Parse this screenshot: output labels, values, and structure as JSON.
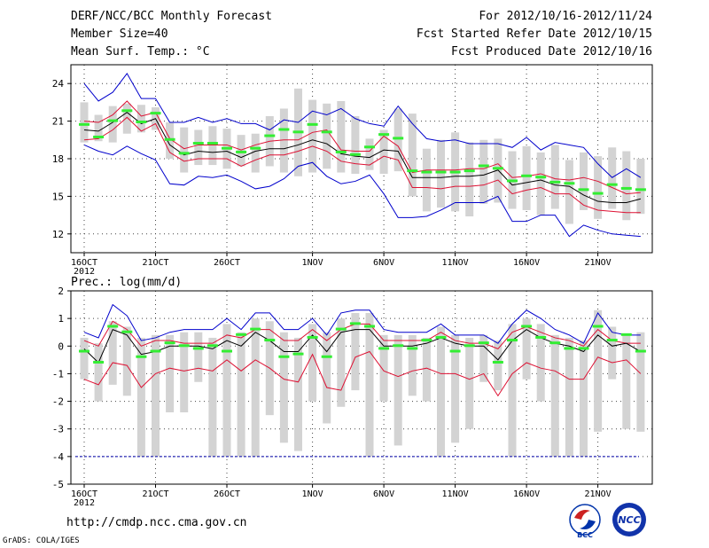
{
  "header": {
    "title": "DERF/NCC/BCC Monthly Forecast",
    "member_size": "Member Size=40",
    "variable1": "Mean Surf. Temp.: °C",
    "period": "For 2012/10/16-2012/11/24",
    "fcst_started": "Fcst Started Refer Date 2012/10/15",
    "fcst_produced": "Fcst Produced Date 2012/10/16"
  },
  "footer": {
    "url": "http://cmdp.ncc.cma.gov.cn",
    "grads": "GrADS: COLA/IGES",
    "logo_left_text": "BCC",
    "logo_right_text": "NCC"
  },
  "colors": {
    "box": "#d3d3d3",
    "median": "#33ee33",
    "mean": "#000000",
    "spread": "#dd1133",
    "extreme": "#0000cc",
    "dashed": "#0000aa"
  },
  "chart_data": [
    {
      "type": "ensemble-plume",
      "title": "Mean Surf. Temp.: °C",
      "xlabel": "",
      "ylabel": "°C",
      "ylim": [
        10.5,
        25.5
      ],
      "yticks": [
        12,
        15,
        18,
        21,
        24
      ],
      "xticks": [
        {
          "day": 1,
          "label": "16OCT",
          "sub": "2012"
        },
        {
          "day": 6,
          "label": "21OCT"
        },
        {
          "day": 11,
          "label": "26OCT"
        },
        {
          "day": 17,
          "label": "1NOV"
        },
        {
          "day": 22,
          "label": "6NOV"
        },
        {
          "day": 27,
          "label": "11NOV"
        },
        {
          "day": 32,
          "label": "16NOV"
        },
        {
          "day": 37,
          "label": "21NOV"
        }
      ],
      "days": 40,
      "series": [
        {
          "name": "max",
          "values": [
            24.0,
            22.6,
            23.3,
            24.8,
            22.8,
            22.8,
            20.9,
            20.9,
            21.3,
            20.9,
            21.2,
            20.8,
            20.8,
            20.3,
            21.1,
            20.9,
            21.8,
            21.5,
            22.0,
            21.2,
            20.8,
            20.6,
            22.2,
            20.8,
            19.6,
            19.4,
            19.5,
            19.2,
            19.2,
            19.2,
            18.9,
            19.7,
            18.7,
            19.3,
            19.1,
            18.9,
            17.6,
            16.5,
            17.2,
            16.5
          ]
        },
        {
          "name": "upper",
          "values": [
            21.0,
            20.9,
            21.5,
            22.6,
            21.4,
            21.7,
            19.6,
            18.8,
            19.1,
            19.1,
            19.1,
            18.7,
            19.1,
            19.4,
            19.5,
            19.5,
            20.1,
            20.3,
            18.7,
            18.6,
            18.6,
            19.8,
            19.0,
            16.9,
            17.1,
            17.1,
            17.1,
            17.2,
            17.2,
            17.6,
            16.5,
            16.6,
            16.8,
            16.4,
            16.3,
            16.5,
            16.2,
            15.7,
            15.2,
            15.3
          ]
        },
        {
          "name": "mean",
          "values": [
            20.3,
            20.2,
            20.9,
            21.7,
            20.8,
            21.2,
            19.1,
            18.3,
            18.6,
            18.5,
            18.6,
            18.1,
            18.6,
            18.8,
            18.8,
            19.1,
            19.5,
            19.2,
            18.4,
            18.2,
            18.1,
            18.7,
            18.6,
            16.5,
            16.5,
            16.5,
            16.6,
            16.6,
            16.7,
            17.1,
            15.9,
            16.1,
            16.3,
            15.9,
            15.8,
            15.1,
            14.6,
            14.5,
            14.5,
            14.8
          ]
        },
        {
          "name": "lower",
          "values": [
            19.5,
            19.6,
            20.3,
            21.3,
            20.2,
            20.8,
            18.5,
            17.8,
            18.0,
            18.0,
            18.0,
            17.4,
            17.9,
            18.3,
            18.3,
            18.6,
            19.0,
            18.6,
            17.8,
            17.6,
            17.5,
            18.2,
            17.9,
            15.7,
            15.7,
            15.6,
            15.8,
            15.8,
            15.9,
            16.3,
            15.2,
            15.5,
            15.7,
            15.2,
            15.2,
            14.3,
            13.9,
            13.8,
            13.7,
            13.7
          ]
        },
        {
          "name": "min",
          "values": [
            19.1,
            18.6,
            18.3,
            19.0,
            18.4,
            17.9,
            16.0,
            15.9,
            16.6,
            16.5,
            16.7,
            16.2,
            15.6,
            15.8,
            16.4,
            17.4,
            17.7,
            16.6,
            16.0,
            16.2,
            16.7,
            15.2,
            13.3,
            13.3,
            13.4,
            13.9,
            14.5,
            14.5,
            14.5,
            15.0,
            13.0,
            13.0,
            13.5,
            13.5,
            11.8,
            12.7,
            12.3,
            12.0,
            11.9,
            11.8
          ]
        },
        {
          "name": "box_top",
          "values": [
            22.5,
            21.5,
            22.2,
            22.4,
            22.3,
            22.1,
            20.9,
            20.5,
            20.3,
            20.6,
            20.4,
            19.9,
            20.0,
            21.4,
            22.0,
            23.6,
            22.7,
            22.4,
            22.6,
            21.4,
            19.6,
            20.3,
            22.0,
            21.6,
            18.8,
            19.5,
            20.1,
            19.3,
            19.5,
            19.6,
            18.6,
            19.0,
            18.5,
            19.1,
            17.9,
            18.5,
            18.2,
            18.9,
            18.6,
            18.0
          ]
        },
        {
          "name": "box_bottom",
          "values": [
            19.3,
            19.4,
            19.3,
            20.0,
            20.1,
            20.3,
            18.0,
            16.9,
            17.5,
            17.5,
            17.2,
            17.4,
            16.9,
            17.4,
            16.9,
            16.6,
            16.9,
            17.2,
            16.9,
            16.8,
            17.1,
            16.8,
            17.0,
            15.0,
            13.8,
            14.1,
            13.8,
            13.4,
            14.4,
            14.5,
            14.0,
            13.9,
            13.5,
            14.0,
            12.8,
            13.9,
            13.2,
            14.0,
            13.1,
            13.6
          ]
        },
        {
          "name": "median",
          "values": [
            20.7,
            19.7,
            21.0,
            21.8,
            20.9,
            21.6,
            19.5,
            18.4,
            19.2,
            19.2,
            18.8,
            18.5,
            18.8,
            19.8,
            20.3,
            20.1,
            20.7,
            20.1,
            18.5,
            18.3,
            18.9,
            19.9,
            19.6,
            17.0,
            16.9,
            16.9,
            16.9,
            17.0,
            17.4,
            17.2,
            16.2,
            16.6,
            16.5,
            16.1,
            16.0,
            15.5,
            15.2,
            15.9,
            15.6,
            15.5
          ]
        }
      ]
    },
    {
      "type": "ensemble-plume",
      "title": "Prec.: log(mm/d)",
      "xlabel": "",
      "ylabel": "log(mm/d)",
      "ylim": [
        -5,
        2
      ],
      "yticks": [
        -5,
        -4,
        -3,
        -2,
        -1,
        0,
        1,
        2
      ],
      "dashed_line": -4,
      "xticks": [
        {
          "day": 1,
          "label": "16OCT",
          "sub": "2012"
        },
        {
          "day": 6,
          "label": "21OCT"
        },
        {
          "day": 11,
          "label": "26OCT"
        },
        {
          "day": 17,
          "label": "1NOV"
        },
        {
          "day": 22,
          "label": "6NOV"
        },
        {
          "day": 27,
          "label": "11NOV"
        },
        {
          "day": 32,
          "label": "16NOV"
        },
        {
          "day": 37,
          "label": "21NOV"
        }
      ],
      "days": 40,
      "series": [
        {
          "name": "max",
          "values": [
            0.5,
            0.3,
            1.5,
            1.1,
            0.2,
            0.3,
            0.5,
            0.6,
            0.6,
            0.6,
            1.0,
            0.6,
            1.2,
            1.2,
            0.6,
            0.6,
            1.0,
            0.4,
            1.2,
            1.3,
            1.3,
            0.6,
            0.5,
            0.5,
            0.5,
            0.8,
            0.4,
            0.4,
            0.4,
            0.1,
            0.8,
            1.3,
            1.0,
            0.6,
            0.4,
            0.1,
            1.2,
            0.5,
            0.4,
            0.4
          ]
        },
        {
          "name": "upper",
          "values": [
            0.2,
            0.0,
            0.9,
            0.6,
            0.0,
            0.2,
            0.2,
            0.1,
            0.1,
            0.1,
            0.4,
            0.3,
            0.6,
            0.6,
            0.2,
            0.2,
            0.6,
            0.2,
            0.6,
            0.8,
            0.8,
            0.2,
            0.2,
            0.2,
            0.2,
            0.5,
            0.2,
            0.1,
            0.1,
            -0.1,
            0.5,
            0.7,
            0.5,
            0.3,
            0.2,
            0.0,
            0.6,
            0.2,
            0.1,
            0.1
          ]
        },
        {
          "name": "mean",
          "values": [
            -0.1,
            -0.6,
            0.6,
            0.4,
            -0.3,
            -0.2,
            0.0,
            0.0,
            0.0,
            -0.1,
            0.2,
            0.0,
            0.5,
            0.2,
            -0.2,
            -0.2,
            0.4,
            -0.2,
            0.5,
            0.6,
            0.6,
            0.0,
            0.0,
            0.0,
            0.1,
            0.3,
            0.1,
            0.0,
            0.0,
            -0.5,
            0.2,
            0.6,
            0.3,
            0.1,
            0.0,
            -0.2,
            0.4,
            0.0,
            0.1,
            -0.2
          ]
        },
        {
          "name": "lower",
          "values": [
            -1.2,
            -1.4,
            -0.6,
            -0.7,
            -1.5,
            -1.0,
            -0.8,
            -0.9,
            -0.8,
            -0.9,
            -0.5,
            -0.9,
            -0.5,
            -0.8,
            -1.2,
            -1.3,
            -0.3,
            -1.5,
            -1.6,
            -0.4,
            -0.2,
            -0.9,
            -1.1,
            -0.9,
            -0.8,
            -1.0,
            -1.0,
            -1.2,
            -1.0,
            -1.8,
            -1.0,
            -0.6,
            -0.8,
            -0.9,
            -1.2,
            -1.2,
            -0.4,
            -0.6,
            -0.5,
            -1.0
          ]
        },
        {
          "name": "box_top",
          "values": [
            0.3,
            0.1,
            0.9,
            0.7,
            0.3,
            0.4,
            0.4,
            0.5,
            0.5,
            0.3,
            0.8,
            0.5,
            1.0,
            0.9,
            0.5,
            0.3,
            0.8,
            0.5,
            1.0,
            1.2,
            1.2,
            0.4,
            0.4,
            0.4,
            0.3,
            0.7,
            0.4,
            0.3,
            0.4,
            0.2,
            0.8,
            1.0,
            0.8,
            0.4,
            0.3,
            0.2,
            1.3,
            0.7,
            0.4,
            0.5
          ]
        },
        {
          "name": "box_bottom",
          "values": [
            -1.2,
            -2.0,
            -1.4,
            -1.8,
            -4.0,
            -4.0,
            -2.4,
            -2.4,
            -1.3,
            -4.0,
            -4.0,
            -4.0,
            -4.0,
            -2.5,
            -3.5,
            -3.8,
            -2.0,
            -2.8,
            -2.2,
            -1.6,
            -4.0,
            -2.0,
            -3.6,
            -1.8,
            -2.0,
            -4.0,
            -3.5,
            -3.0,
            -1.3,
            -1.6,
            -4.0,
            -1.2,
            -2.0,
            -4.0,
            -4.0,
            -4.0,
            -3.1,
            -1.2,
            -3.0,
            -3.1
          ]
        },
        {
          "name": "median",
          "values": [
            -0.2,
            -0.6,
            0.7,
            0.5,
            -0.4,
            -0.2,
            0.1,
            0.0,
            -0.1,
            0.0,
            -0.2,
            0.4,
            0.6,
            0.2,
            -0.4,
            -0.3,
            0.3,
            -0.4,
            0.6,
            0.8,
            0.7,
            -0.1,
            0.0,
            -0.1,
            0.2,
            0.3,
            -0.2,
            0.0,
            0.1,
            -0.6,
            0.2,
            0.7,
            0.3,
            0.1,
            -0.1,
            -0.1,
            0.7,
            0.2,
            0.4,
            -0.2
          ]
        }
      ]
    }
  ]
}
